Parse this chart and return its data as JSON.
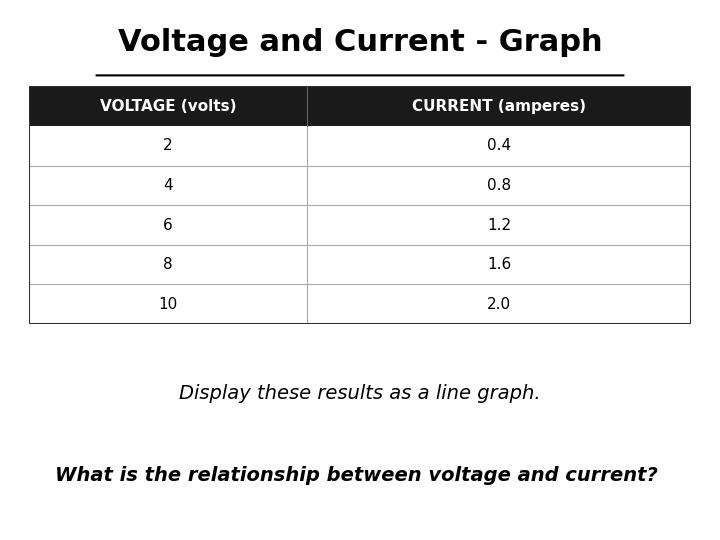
{
  "title": "Voltage and Current - Graph",
  "col1_header": "VOLTAGE (volts)",
  "col2_header": "CURRENT (amperes)",
  "rows": [
    [
      2,
      0.4
    ],
    [
      4,
      0.8
    ],
    [
      6,
      1.2
    ],
    [
      8,
      1.6
    ],
    [
      10,
      2.0
    ]
  ],
  "text1": "Display these results as a line graph.",
  "text2": "What is the relationship between voltage and current?",
  "bg_color": "#ffffff",
  "header_bg": "#1a1a1a",
  "header_fg": "#ffffff",
  "row_border": "#aaaaaa",
  "table_border": "#333333",
  "title_fontsize": 22,
  "header_fontsize": 11,
  "cell_fontsize": 11,
  "text1_fontsize": 14,
  "text2_fontsize": 14,
  "col_split": 0.42
}
